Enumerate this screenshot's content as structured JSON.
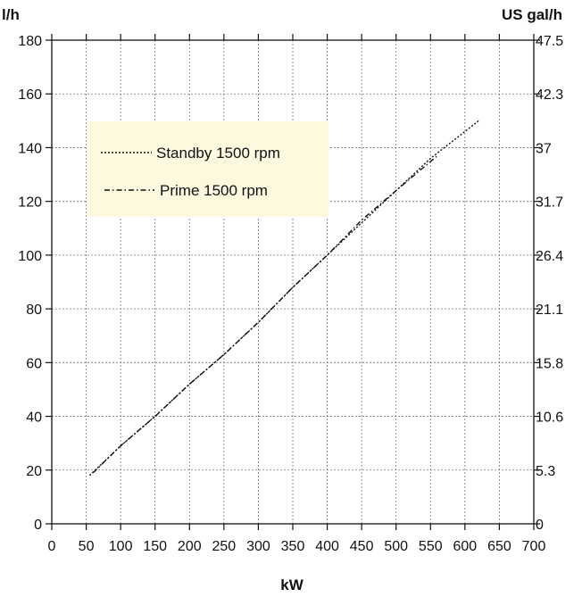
{
  "chart_data": {
    "type": "line",
    "xlabel": "kW",
    "ylabel_left": "l/h",
    "ylabel_right": "US gal/h",
    "xlim": [
      0,
      700
    ],
    "ylim": [
      0,
      180
    ],
    "x_ticks": [
      "0",
      "50",
      "100",
      "150",
      "200",
      "250",
      "300",
      "350",
      "400",
      "450",
      "500",
      "550",
      "600",
      "650",
      "700"
    ],
    "y_ticks_left": [
      "0",
      "20",
      "40",
      "60",
      "80",
      "100",
      "120",
      "140",
      "160",
      "180"
    ],
    "y_ticks_right": [
      "0",
      "5.3",
      "10.6",
      "15.8",
      "21.1",
      "26.4",
      "31.7",
      "37",
      "42.3",
      "47.5"
    ],
    "grid": true,
    "legend_position": "top-left",
    "legend_background": "#fdf9df",
    "series": [
      {
        "name": "Standby 1500 rpm",
        "dash": "dotted",
        "color": "#111111",
        "x": [
          55,
          100,
          150,
          200,
          250,
          300,
          350,
          400,
          450,
          500,
          550,
          620
        ],
        "y": [
          18,
          29,
          40,
          52,
          63,
          75,
          88,
          100,
          112,
          124,
          136,
          150
        ]
      },
      {
        "name": "Prime 1500 rpm",
        "dash": "dashdot",
        "color": "#111111",
        "x": [
          60,
          100,
          150,
          200,
          250,
          300,
          350,
          400,
          450,
          500,
          560
        ],
        "y": [
          19,
          29,
          40,
          52,
          63,
          75,
          88,
          100,
          113,
          124,
          137
        ]
      }
    ]
  }
}
